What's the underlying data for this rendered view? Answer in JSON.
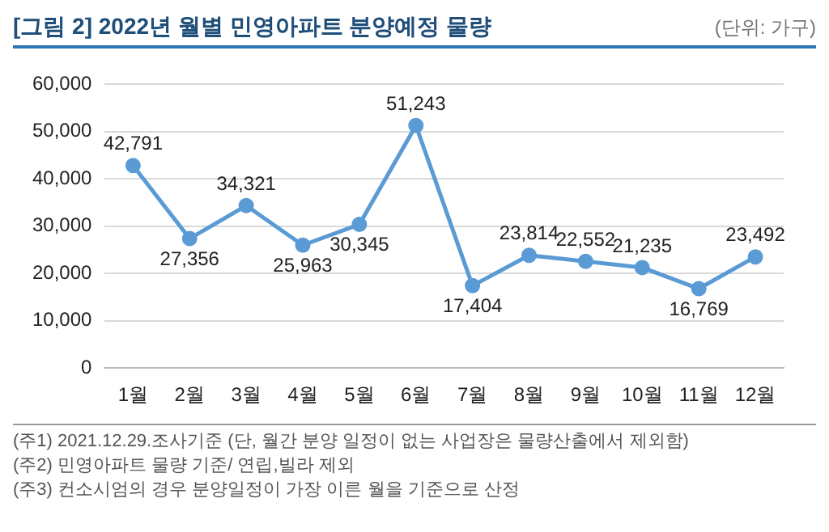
{
  "chart_data": {
    "type": "line",
    "title": "[그림 2] 2022년 월별 민영아파트 분양예정 물량",
    "subtitle": "(단위: 가구)",
    "categories": [
      "1월",
      "2월",
      "3월",
      "4월",
      "5월",
      "6월",
      "7월",
      "8월",
      "9월",
      "10월",
      "11월",
      "12월"
    ],
    "series": [
      {
        "color": "#5b9bd5",
        "values": [
          42791,
          27356,
          34321,
          25963,
          30345,
          51243,
          17404,
          23814,
          22552,
          21235,
          16769,
          23492
        ],
        "value_labels": [
          "42,791",
          "27,356",
          "34,321",
          "25,963",
          "30,345",
          "51,243",
          "17,404",
          "23,814",
          "22,552",
          "21,235",
          "16,769",
          "23,492"
        ]
      }
    ],
    "ylim": [
      0,
      60000
    ],
    "yticks": [
      {
        "value": 0,
        "label": "0"
      },
      {
        "value": 10000,
        "label": "10,000"
      },
      {
        "value": 20000,
        "label": "20,000"
      },
      {
        "value": 30000,
        "label": "30,000"
      },
      {
        "value": 40000,
        "label": "40,000"
      },
      {
        "value": 50000,
        "label": "50,000"
      },
      {
        "value": 60000,
        "label": "60,000"
      }
    ],
    "grid": "y",
    "legend": false,
    "marker": "circle",
    "line_style": "solid",
    "annotations": [
      "(주1) 2021.12.29.조사기준 (단, 월간 분양 일정이 없는 사업장은 물량산출에서 제외함)",
      "(주2) 민영아파트 물량 기준/ 연립,빌라 제외",
      "(주3) 컨소시엄의 경우 분양일정이 가장 이른 월을 기준으로 산정"
    ]
  }
}
